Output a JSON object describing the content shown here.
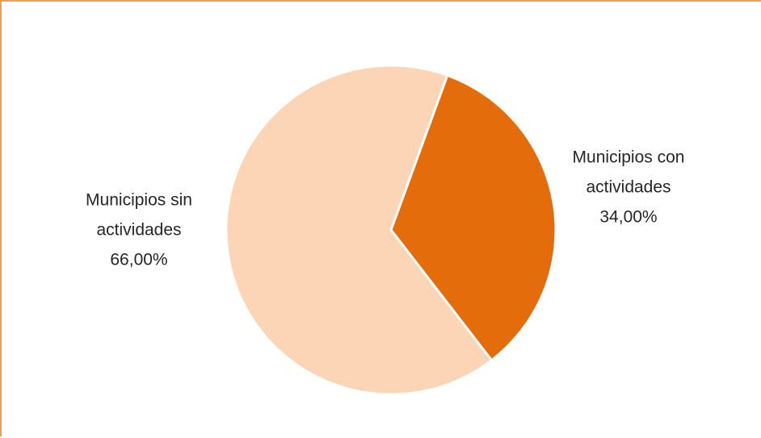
{
  "chart_data": {
    "type": "pie",
    "title": "",
    "start_angle_deg": 20,
    "direction": "clockwise",
    "slices": [
      {
        "label_lines": [
          "Municipios con",
          "actividades"
        ],
        "value": 34.0,
        "value_label": "34,00%",
        "color": "#e46c0a"
      },
      {
        "label_lines": [
          "Municipios sin",
          "actividades"
        ],
        "value": 66.0,
        "value_label": "66,00%",
        "color": "#fbd5b5"
      }
    ],
    "legend": "none",
    "data_labels": "outside"
  },
  "colors": {
    "frame_border": "#f0a050",
    "slice_separator": "#ffffff",
    "label_text": "#262626"
  }
}
